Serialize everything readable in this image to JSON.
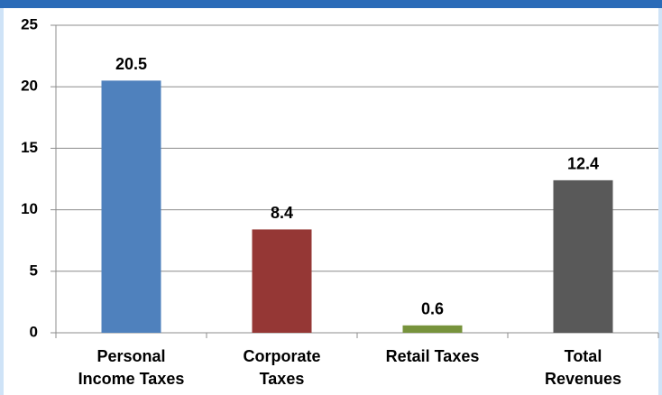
{
  "chart_data": {
    "type": "bar",
    "categories": [
      [
        "Personal",
        "Income Taxes"
      ],
      [
        "Corporate",
        "Taxes"
      ],
      [
        "Retail Taxes"
      ],
      [
        "Total",
        "Revenues"
      ]
    ],
    "values": [
      20.5,
      8.4,
      0.6,
      12.4
    ],
    "colors": [
      "#4f81bd",
      "#953735",
      "#77933c",
      "#595959"
    ],
    "ylim": [
      0,
      25
    ],
    "yticks": [
      0,
      5,
      10,
      15,
      20,
      25
    ],
    "grid": true
  }
}
